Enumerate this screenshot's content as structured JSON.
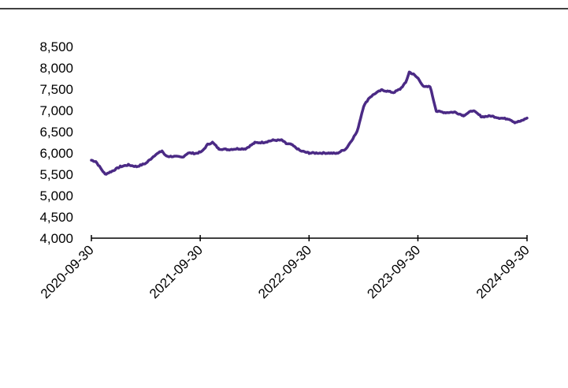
{
  "chart_data": {
    "type": "line",
    "title": "",
    "xlabel": "",
    "ylabel": "",
    "ylim": [
      4000,
      8500
    ],
    "y_ticks": [
      "4,000",
      "4,500",
      "5,000",
      "5,500",
      "6,000",
      "6,500",
      "7,000",
      "7,500",
      "8,000",
      "8,500"
    ],
    "x_ticks": [
      "2020-09-30",
      "2021-09-30",
      "2022-09-30",
      "2023-09-30",
      "2024-09-30"
    ],
    "grid": false,
    "legend": "none",
    "line_color": "#4B2A85",
    "series": [
      {
        "x": [
          "2020-09-30",
          "2020-10-15",
          "2020-11-15",
          "2020-12-10",
          "2021-01-05",
          "2021-02-01",
          "2021-03-01",
          "2021-04-01",
          "2021-05-01",
          "2021-05-25",
          "2021-06-05",
          "2021-06-15",
          "2021-07-01",
          "2021-08-01",
          "2021-08-20",
          "2021-09-15",
          "2021-10-05",
          "2021-10-25",
          "2021-11-10",
          "2021-12-01",
          "2022-01-01",
          "2022-02-01",
          "2022-03-01",
          "2022-04-01",
          "2022-05-01",
          "2022-06-01",
          "2022-07-01",
          "2022-07-15",
          "2022-08-01",
          "2022-09-01",
          "2022-09-30",
          "2022-11-01",
          "2022-12-01",
          "2023-01-01",
          "2023-02-01",
          "2023-02-20",
          "2023-03-10",
          "2023-04-01",
          "2023-04-20",
          "2023-05-10",
          "2023-06-01",
          "2023-06-20",
          "2023-07-10",
          "2023-08-01",
          "2023-08-20",
          "2023-09-01",
          "2023-09-15",
          "2023-10-01",
          "2023-10-20",
          "2023-11-10",
          "2023-12-01",
          "2024-01-01",
          "2024-02-01",
          "2024-03-01",
          "2024-04-01",
          "2024-05-01",
          "2024-06-01",
          "2024-07-01",
          "2024-08-01",
          "2024-08-20",
          "2024-09-10",
          "2024-09-30"
        ],
        "values": [
          5830,
          5800,
          5500,
          5580,
          5680,
          5720,
          5680,
          5760,
          5950,
          6050,
          5940,
          5920,
          5920,
          5900,
          6000,
          5990,
          6030,
          6200,
          6250,
          6100,
          6080,
          6100,
          6100,
          6240,
          6250,
          6300,
          6300,
          6220,
          6200,
          6050,
          6000,
          6000,
          6000,
          5990,
          6100,
          6300,
          6500,
          7100,
          7300,
          7400,
          7480,
          7450,
          7420,
          7500,
          7650,
          7900,
          7850,
          7750,
          7550,
          7560,
          6980,
          6950,
          6960,
          6880,
          7000,
          6850,
          6870,
          6820,
          6800,
          6720,
          6750,
          6820
        ]
      }
    ]
  }
}
